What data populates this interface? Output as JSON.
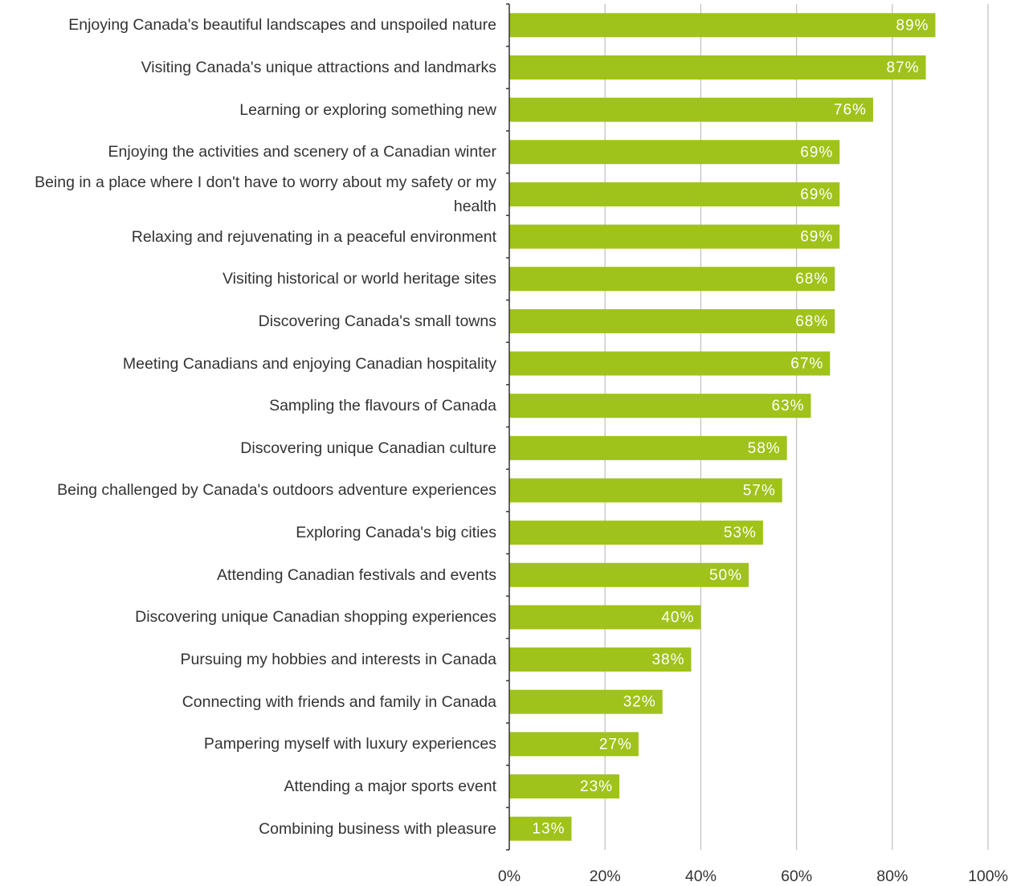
{
  "chart_data": {
    "type": "barh",
    "categories": [
      "Enjoying Canada's beautiful landscapes and unspoiled nature",
      "Visiting Canada's unique attractions and landmarks",
      "Learning or exploring something new",
      "Enjoying the activities and scenery of a Canadian winter",
      "Being in a place where I don't have to worry about my safety or my health",
      "Relaxing and rejuvenating in a peaceful environment",
      "Visiting historical or world heritage sites ",
      "Discovering Canada's small towns",
      "Meeting Canadians and enjoying Canadian hospitality",
      "Sampling the flavours of Canada",
      "Discovering unique Canadian culture",
      "Being challenged by Canada's outdoors adventure experiences",
      "Exploring Canada's big cities",
      "Attending Canadian festivals and events",
      "Discovering unique Canadian shopping experiences",
      "Pursuing my hobbies and interests in Canada",
      "Connecting with friends and family in Canada",
      "Pampering myself with luxury experiences",
      "Attending a major sports event",
      "Combining business with pleasure"
    ],
    "values": [
      89,
      87,
      76,
      69,
      69,
      69,
      68,
      68,
      67,
      63,
      58,
      57,
      53,
      50,
      40,
      38,
      32,
      27,
      23,
      13
    ],
    "value_labels": [
      "89%",
      "87%",
      "76%",
      "69%",
      "69%",
      "69%",
      "68%",
      "68%",
      "67%",
      "63%",
      "58%",
      "57%",
      "53%",
      "50%",
      "40%",
      "38%",
      "32%",
      "27%",
      "23%",
      "13%"
    ],
    "color": "#9fc31a",
    "xlim": [
      0,
      100
    ],
    "xticks": [
      {
        "value": 0,
        "label": "0%"
      },
      {
        "value": 20,
        "label": "20%"
      },
      {
        "value": 40,
        "label": "40%"
      },
      {
        "value": 60,
        "label": "60%"
      },
      {
        "value": 80,
        "label": "80%"
      },
      {
        "value": 100,
        "label": "100%"
      }
    ],
    "grid": true
  }
}
